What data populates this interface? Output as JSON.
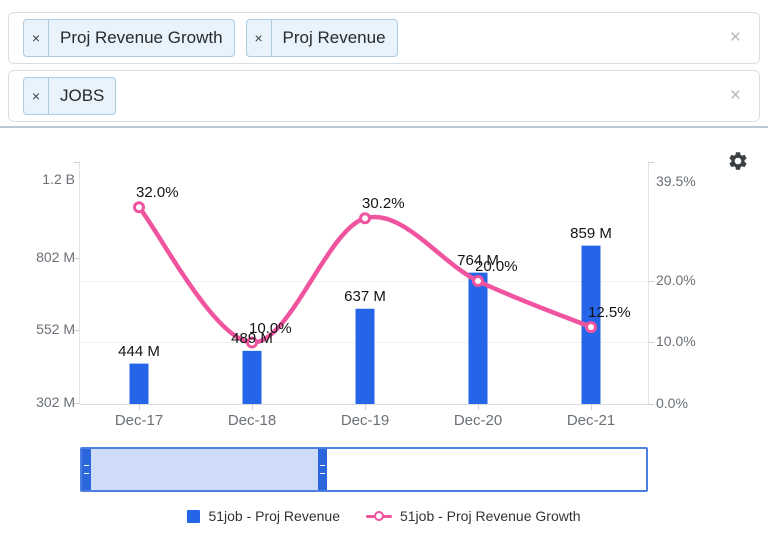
{
  "filters": {
    "rows": [
      {
        "name": "metrics",
        "chips": [
          {
            "remove_glyph": "×",
            "label": "Proj Revenue Growth"
          },
          {
            "remove_glyph": "×",
            "label": "Proj Revenue"
          }
        ],
        "clear_glyph": "×"
      },
      {
        "name": "tickers",
        "chips": [
          {
            "remove_glyph": "×",
            "label": "JOBS"
          }
        ],
        "clear_glyph": "×"
      }
    ]
  },
  "chart_data": {
    "type": "bar+line",
    "categories": [
      "Dec-17",
      "Dec-18",
      "Dec-19",
      "Dec-20",
      "Dec-21"
    ],
    "series": [
      {
        "name": "51job - Proj Revenue",
        "type": "bar",
        "axis": "left",
        "unit": "USD millions",
        "values": [
          444,
          489,
          637,
          764,
          859
        ],
        "point_labels": [
          "444 M",
          "489 M",
          "637 M",
          "764 M",
          "859 M"
        ],
        "color": "#2565e8"
      },
      {
        "name": "51job - Proj Revenue Growth",
        "type": "line",
        "axis": "right",
        "unit": "%",
        "values": [
          32.0,
          10.0,
          30.2,
          20.0,
          12.5
        ],
        "point_labels": [
          "32.0%",
          "10.0%",
          "30.2%",
          "20.0%",
          "12.5%"
        ],
        "color": "#f1549f"
      }
    ],
    "left_axis": {
      "tick_labels": [
        "1.2 B",
        "802 M",
        "552 M",
        "302 M"
      ]
    },
    "right_axis": {
      "tick_labels": [
        "39.5%",
        "20.0%",
        "10.0%",
        "0.0%"
      ],
      "range": [
        0,
        39.5
      ]
    },
    "legend_position": "bottom",
    "grid": "horizontal-faint"
  },
  "legend": {
    "items": [
      {
        "label": "51job - Proj Revenue",
        "marker": "square",
        "color": "#2565e8"
      },
      {
        "label": "51job - Proj Revenue Growth",
        "marker": "line-circle",
        "color": "#f1549f"
      }
    ]
  },
  "colors": {
    "bar_blue": "#2565e8",
    "line_pink": "#f1549f",
    "navigator_border": "#4b7de2",
    "navigator_fill": "#cfdcf7",
    "navigator_handle": "#2b66dd",
    "chip_bg": "#e9f3fb",
    "axis_text": "#6a7076"
  }
}
